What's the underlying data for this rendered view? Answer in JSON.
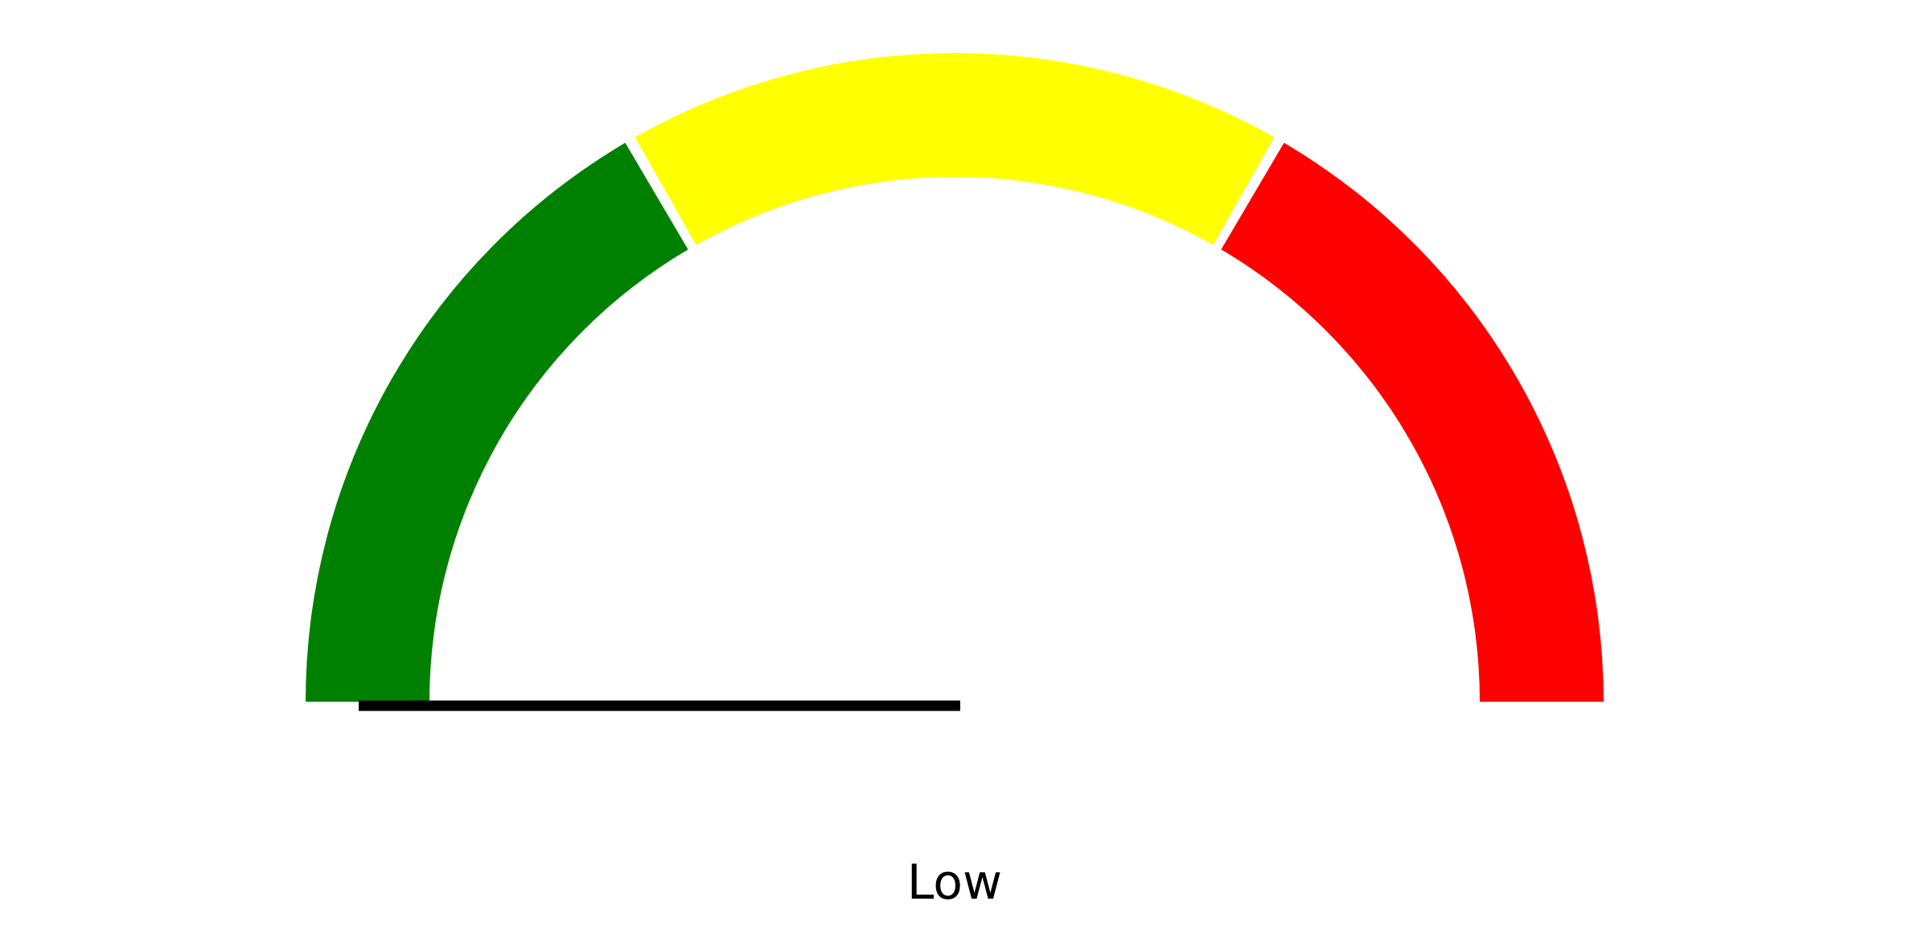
{
  "chart_data": {
    "type": "gauge",
    "min": 0,
    "max": 180,
    "value": 0,
    "label": "Low",
    "needle_color": "#000000",
    "zones": [
      {
        "from": 0,
        "to": 60,
        "color": "#008000"
      },
      {
        "from": 60,
        "to": 120,
        "color": "#ffff00"
      },
      {
        "from": 120,
        "to": 180,
        "color": "#ff0000"
      }
    ]
  }
}
